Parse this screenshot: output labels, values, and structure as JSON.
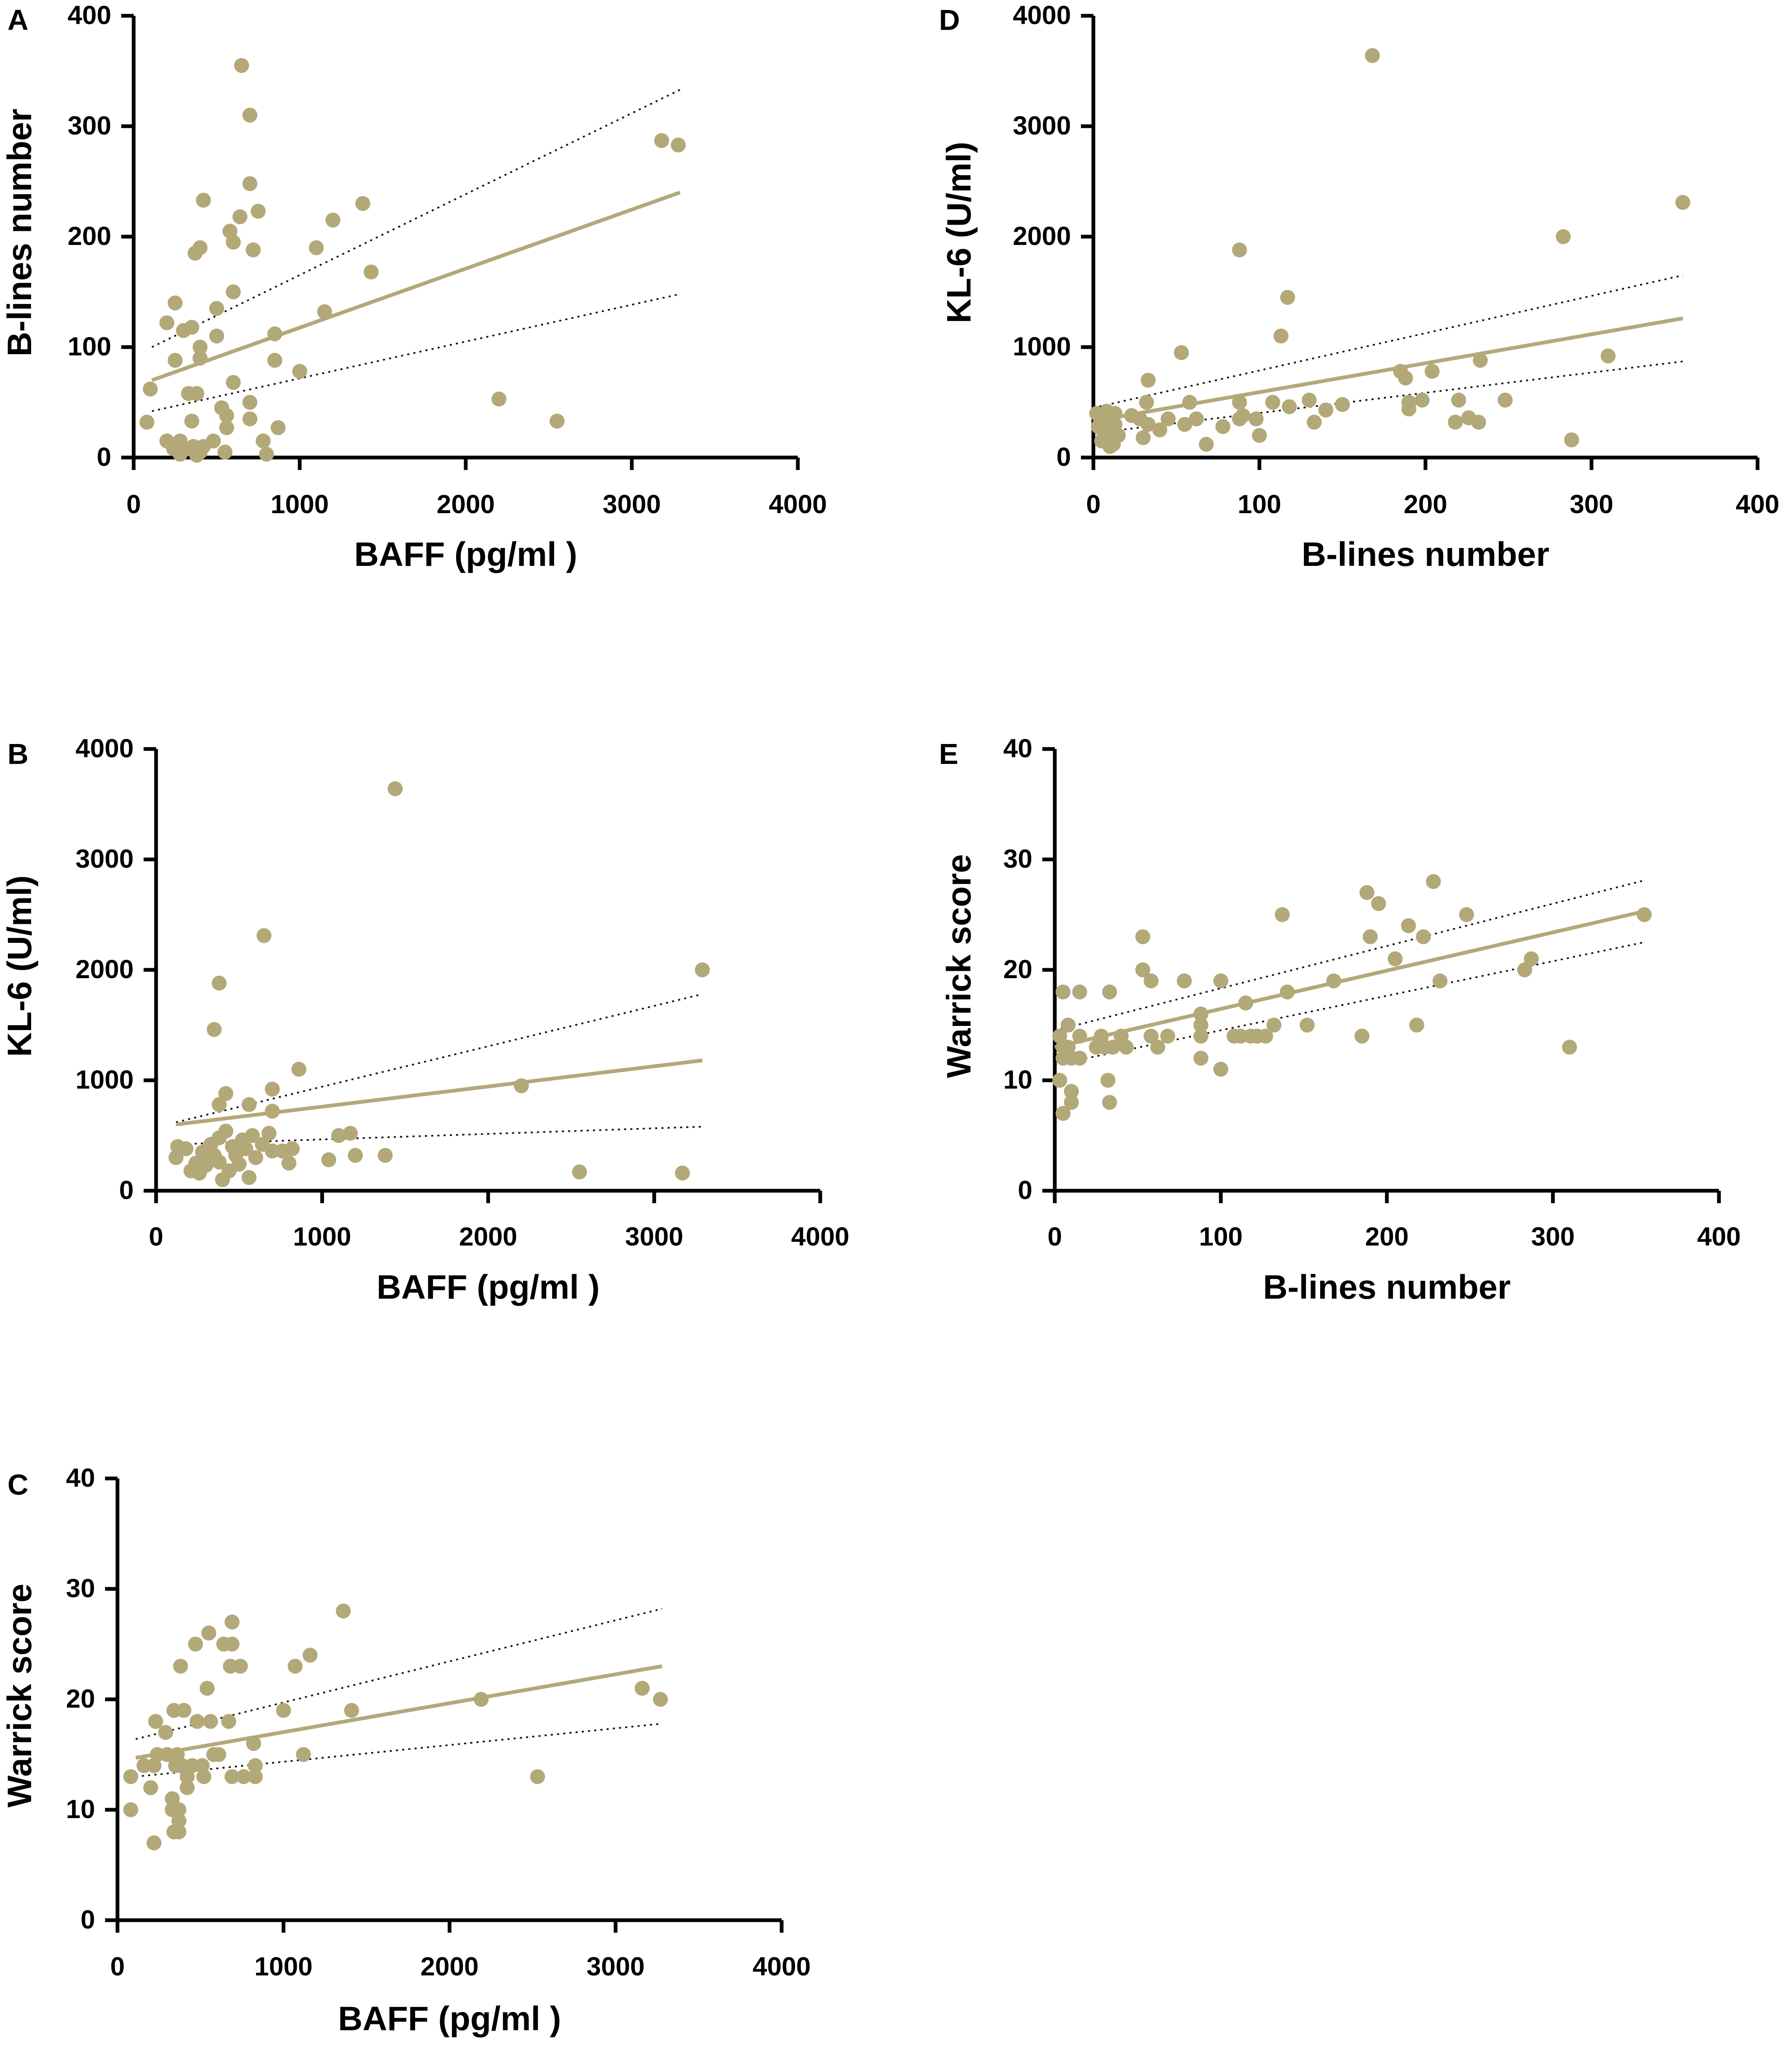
{
  "figure": {
    "marker_color": "#b3a878",
    "fit_color": "#b3a878",
    "ci_color": "#111111"
  },
  "chart_data": [
    {
      "panel": "A",
      "type": "scatter",
      "xlabel": "BAFF (pg/ml )",
      "ylabel": "B-lines number",
      "xlim": [
        0,
        4000
      ],
      "ylim": [
        0,
        400
      ],
      "xticks": [
        "0",
        "1000",
        "2000",
        "3000",
        "4000"
      ],
      "yticks": [
        "0",
        "100",
        "200",
        "300",
        "400"
      ],
      "points": [
        [
          650,
          355
        ],
        [
          700,
          310
        ],
        [
          700,
          248
        ],
        [
          750,
          223
        ],
        [
          640,
          218
        ],
        [
          580,
          205
        ],
        [
          600,
          195
        ],
        [
          720,
          188
        ],
        [
          400,
          190
        ],
        [
          370,
          185
        ],
        [
          420,
          233
        ],
        [
          1100,
          190
        ],
        [
          1200,
          215
        ],
        [
          1380,
          230
        ],
        [
          1430,
          168
        ],
        [
          600,
          150
        ],
        [
          500,
          135
        ],
        [
          1150,
          132
        ],
        [
          250,
          140
        ],
        [
          200,
          122
        ],
        [
          300,
          115
        ],
        [
          350,
          118
        ],
        [
          400,
          100
        ],
        [
          500,
          110
        ],
        [
          850,
          112
        ],
        [
          250,
          88
        ],
        [
          400,
          90
        ],
        [
          850,
          88
        ],
        [
          1000,
          78
        ],
        [
          600,
          68
        ],
        [
          100,
          62
        ],
        [
          330,
          58
        ],
        [
          380,
          58
        ],
        [
          700,
          50
        ],
        [
          530,
          45
        ],
        [
          560,
          38
        ],
        [
          700,
          35
        ],
        [
          350,
          33
        ],
        [
          80,
          32
        ],
        [
          560,
          27
        ],
        [
          870,
          27
        ],
        [
          200,
          15
        ],
        [
          280,
          15
        ],
        [
          360,
          10
        ],
        [
          480,
          15
        ],
        [
          780,
          15
        ],
        [
          330,
          8
        ],
        [
          400,
          5
        ],
        [
          420,
          10
        ],
        [
          240,
          8
        ],
        [
          280,
          3
        ],
        [
          380,
          2
        ],
        [
          550,
          5
        ],
        [
          800,
          3
        ],
        [
          2200,
          53
        ],
        [
          2550,
          33
        ],
        [
          3180,
          287
        ],
        [
          3280,
          283
        ]
      ],
      "fit": [
        [
          110,
          70
        ],
        [
          3290,
          240
        ]
      ],
      "ci_upper": [
        [
          110,
          100
        ],
        [
          3290,
          333
        ]
      ],
      "ci_lower": [
        [
          110,
          42
        ],
        [
          3290,
          148
        ]
      ]
    },
    {
      "panel": "B",
      "type": "scatter",
      "xlabel": "BAFF (pg/ml )",
      "ylabel": "KL-6 (U/ml)",
      "xlim": [
        0,
        4000
      ],
      "ylim": [
        0,
        4000
      ],
      "xticks": [
        "0",
        "1000",
        "2000",
        "3000",
        "4000"
      ],
      "yticks": [
        "0",
        "1000",
        "2000",
        "3000",
        "4000"
      ],
      "points": [
        [
          1440,
          3640
        ],
        [
          650,
          2310
        ],
        [
          380,
          1880
        ],
        [
          350,
          1460
        ],
        [
          860,
          1100
        ],
        [
          420,
          880
        ],
        [
          700,
          920
        ],
        [
          380,
          780
        ],
        [
          560,
          780
        ],
        [
          700,
          720
        ],
        [
          2200,
          950
        ],
        [
          3290,
          2000
        ],
        [
          2550,
          170
        ],
        [
          3170,
          160
        ],
        [
          130,
          400
        ],
        [
          180,
          380
        ],
        [
          120,
          300
        ],
        [
          240,
          250
        ],
        [
          210,
          180
        ],
        [
          260,
          160
        ],
        [
          300,
          230
        ],
        [
          280,
          350
        ],
        [
          330,
          420
        ],
        [
          350,
          320
        ],
        [
          380,
          480
        ],
        [
          380,
          260
        ],
        [
          420,
          540
        ],
        [
          400,
          100
        ],
        [
          440,
          180
        ],
        [
          460,
          400
        ],
        [
          480,
          320
        ],
        [
          500,
          240
        ],
        [
          520,
          460
        ],
        [
          540,
          380
        ],
        [
          560,
          120
        ],
        [
          580,
          500
        ],
        [
          600,
          300
        ],
        [
          640,
          420
        ],
        [
          680,
          520
        ],
        [
          700,
          360
        ],
        [
          760,
          360
        ],
        [
          800,
          250
        ],
        [
          820,
          380
        ],
        [
          1040,
          280
        ],
        [
          1100,
          500
        ],
        [
          1170,
          520
        ],
        [
          1200,
          320
        ],
        [
          1380,
          320
        ]
      ],
      "fit": [
        [
          120,
          600
        ],
        [
          3290,
          1180
        ]
      ],
      "ci_upper": [
        [
          120,
          620
        ],
        [
          3290,
          1780
        ]
      ],
      "ci_lower": [
        [
          120,
          420
        ],
        [
          3290,
          580
        ]
      ]
    },
    {
      "panel": "C",
      "type": "scatter",
      "xlabel": "BAFF (pg/ml )",
      "ylabel": "Warrick score",
      "xlim": [
        0,
        4000
      ],
      "ylim": [
        0,
        40
      ],
      "xticks": [
        "0",
        "1000",
        "2000",
        "3000",
        "4000"
      ],
      "yticks": [
        "0",
        "10",
        "20",
        "30",
        "40"
      ],
      "points": [
        [
          690,
          27
        ],
        [
          1360,
          28
        ],
        [
          550,
          26
        ],
        [
          470,
          25
        ],
        [
          640,
          25
        ],
        [
          690,
          25
        ],
        [
          1160,
          24
        ],
        [
          380,
          23
        ],
        [
          680,
          23
        ],
        [
          740,
          23
        ],
        [
          1070,
          23
        ],
        [
          540,
          21
        ],
        [
          3160,
          21
        ],
        [
          2190,
          20
        ],
        [
          3270,
          20
        ],
        [
          1000,
          19
        ],
        [
          1410,
          19
        ],
        [
          340,
          19
        ],
        [
          400,
          19
        ],
        [
          230,
          18
        ],
        [
          480,
          18
        ],
        [
          560,
          18
        ],
        [
          670,
          18
        ],
        [
          290,
          17
        ],
        [
          820,
          16
        ],
        [
          1120,
          15
        ],
        [
          240,
          15
        ],
        [
          300,
          15
        ],
        [
          360,
          15
        ],
        [
          580,
          15
        ],
        [
          610,
          15
        ],
        [
          160,
          14
        ],
        [
          220,
          14
        ],
        [
          350,
          14
        ],
        [
          390,
          14
        ],
        [
          450,
          14
        ],
        [
          510,
          14
        ],
        [
          830,
          14
        ],
        [
          80,
          13
        ],
        [
          420,
          13
        ],
        [
          520,
          13
        ],
        [
          690,
          13
        ],
        [
          760,
          13
        ],
        [
          830,
          13
        ],
        [
          2530,
          13
        ],
        [
          200,
          12
        ],
        [
          420,
          12
        ],
        [
          330,
          11
        ],
        [
          330,
          10
        ],
        [
          370,
          10
        ],
        [
          80,
          10
        ],
        [
          370,
          9
        ],
        [
          340,
          8
        ],
        [
          370,
          8
        ],
        [
          220,
          7
        ]
      ],
      "fit": [
        [
          110,
          14.7
        ],
        [
          3280,
          23
        ]
      ],
      "ci_upper": [
        [
          110,
          16.4
        ],
        [
          3280,
          28.2
        ]
      ],
      "ci_lower": [
        [
          110,
          13
        ],
        [
          3280,
          17.8
        ]
      ]
    },
    {
      "panel": "D",
      "type": "scatter",
      "xlabel": "B-lines number",
      "ylabel": "KL-6 (U/ml)",
      "xlim": [
        0,
        400
      ],
      "ylim": [
        0,
        4000
      ],
      "xticks": [
        "0",
        "100",
        "200",
        "300",
        "400"
      ],
      "yticks": [
        "0",
        "1000",
        "2000",
        "3000",
        "4000"
      ],
      "points": [
        [
          168,
          3640
        ],
        [
          355,
          2310
        ],
        [
          88,
          1880
        ],
        [
          283,
          2000
        ],
        [
          117,
          1450
        ],
        [
          113,
          1100
        ],
        [
          53,
          950
        ],
        [
          33,
          700
        ],
        [
          233,
          880
        ],
        [
          310,
          920
        ],
        [
          288,
          160
        ],
        [
          185,
          780
        ],
        [
          204,
          780
        ],
        [
          188,
          720
        ],
        [
          190,
          500
        ],
        [
          198,
          520
        ],
        [
          190,
          440
        ],
        [
          220,
          520
        ],
        [
          218,
          320
        ],
        [
          226,
          360
        ],
        [
          232,
          320
        ],
        [
          248,
          520
        ],
        [
          130,
          520
        ],
        [
          140,
          430
        ],
        [
          150,
          480
        ],
        [
          133,
          320
        ],
        [
          108,
          500
        ],
        [
          118,
          460
        ],
        [
          98,
          350
        ],
        [
          100,
          200
        ],
        [
          88,
          500
        ],
        [
          90,
          380
        ],
        [
          88,
          350
        ],
        [
          78,
          280
        ],
        [
          68,
          120
        ],
        [
          62,
          350
        ],
        [
          58,
          500
        ],
        [
          55,
          300
        ],
        [
          45,
          350
        ],
        [
          40,
          250
        ],
        [
          33,
          300
        ],
        [
          32,
          500
        ],
        [
          30,
          180
        ],
        [
          28,
          350
        ],
        [
          23,
          380
        ],
        [
          15,
          200
        ],
        [
          13,
          300
        ],
        [
          13,
          400
        ],
        [
          10,
          350
        ],
        [
          8,
          250
        ],
        [
          8,
          420
        ],
        [
          5,
          150
        ],
        [
          5,
          300
        ],
        [
          5,
          350
        ],
        [
          3,
          280
        ],
        [
          2,
          400
        ],
        [
          10,
          100
        ],
        [
          12,
          120
        ],
        [
          6,
          180
        ]
      ],
      "fit": [
        [
          0,
          330
        ],
        [
          355,
          1260
        ]
      ],
      "ci_upper": [
        [
          0,
          450
        ],
        [
          355,
          1650
        ]
      ],
      "ci_lower": [
        [
          0,
          220
        ],
        [
          355,
          870
        ]
      ]
    },
    {
      "panel": "E",
      "type": "scatter",
      "xlabel": "B-lines number",
      "ylabel": "Warrick score",
      "xlim": [
        0,
        400
      ],
      "ylim": [
        0,
        40
      ],
      "xticks": [
        "0",
        "100",
        "200",
        "300",
        "400"
      ],
      "yticks": [
        "0",
        "10",
        "20",
        "30",
        "40"
      ],
      "points": [
        [
          5,
          18
        ],
        [
          15,
          18
        ],
        [
          33,
          18
        ],
        [
          53,
          23
        ],
        [
          53,
          20
        ],
        [
          58,
          19
        ],
        [
          78,
          19
        ],
        [
          100,
          19
        ],
        [
          88,
          16
        ],
        [
          88,
          15
        ],
        [
          88,
          14
        ],
        [
          88,
          12
        ],
        [
          100,
          11
        ],
        [
          115,
          17
        ],
        [
          118,
          14
        ],
        [
          122,
          14
        ],
        [
          127,
          14
        ],
        [
          108,
          14
        ],
        [
          112,
          14
        ],
        [
          132,
          15
        ],
        [
          137,
          25
        ],
        [
          140,
          18
        ],
        [
          152,
          15
        ],
        [
          168,
          19
        ],
        [
          185,
          14
        ],
        [
          188,
          27
        ],
        [
          190,
          23
        ],
        [
          195,
          26
        ],
        [
          205,
          21
        ],
        [
          213,
          24
        ],
        [
          218,
          15
        ],
        [
          222,
          23
        ],
        [
          228,
          28
        ],
        [
          232,
          19
        ],
        [
          248,
          25
        ],
        [
          283,
          20
        ],
        [
          287,
          21
        ],
        [
          310,
          13
        ],
        [
          355,
          25
        ],
        [
          3,
          14
        ],
        [
          5,
          13
        ],
        [
          5,
          12
        ],
        [
          8,
          15
        ],
        [
          8,
          13
        ],
        [
          10,
          12
        ],
        [
          10,
          9
        ],
        [
          10,
          8
        ],
        [
          3,
          10
        ],
        [
          5,
          7
        ],
        [
          15,
          14
        ],
        [
          15,
          12
        ],
        [
          25,
          13
        ],
        [
          28,
          14
        ],
        [
          30,
          13
        ],
        [
          32,
          10
        ],
        [
          33,
          8
        ],
        [
          35,
          13
        ],
        [
          40,
          14
        ],
        [
          43,
          13
        ],
        [
          58,
          14
        ],
        [
          62,
          13
        ],
        [
          68,
          14
        ]
      ],
      "fit": [
        [
          0,
          13
        ],
        [
          355,
          25.3
        ]
      ],
      "ci_upper": [
        [
          0,
          14.5
        ],
        [
          355,
          28.1
        ]
      ],
      "ci_lower": [
        [
          0,
          11.4
        ],
        [
          355,
          22.5
        ]
      ]
    }
  ]
}
